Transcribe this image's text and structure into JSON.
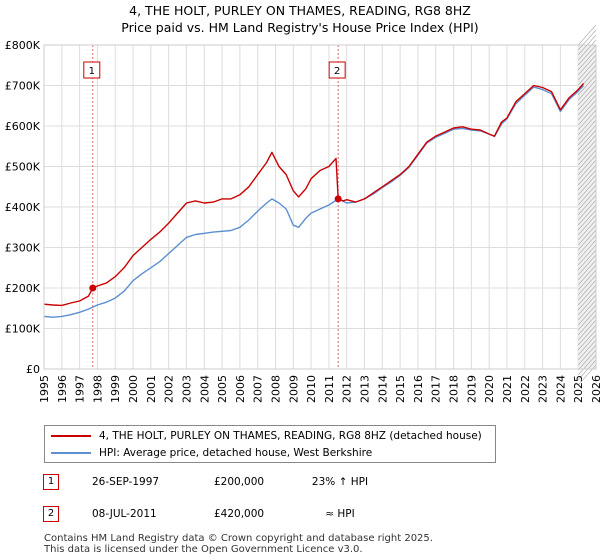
{
  "title_line1": "4, THE HOLT, PURLEY ON THAMES, READING, RG8 8HZ",
  "title_line2": "Price paid vs. HM Land Registry's House Price Index (HPI)",
  "colors": {
    "property": "#cc0000",
    "hpi": "#5b8fd0",
    "grid": "#dddddd",
    "forecast": "#aaaaaa"
  },
  "chart_data": {
    "type": "line",
    "x_range": [
      1995,
      2026
    ],
    "y_range": [
      0,
      800000
    ],
    "x_ticks": [
      "1995",
      "1996",
      "1997",
      "1998",
      "1999",
      "2000",
      "2001",
      "2002",
      "2003",
      "2004",
      "2005",
      "2006",
      "2007",
      "2008",
      "2009",
      "2010",
      "2011",
      "2012",
      "2013",
      "2014",
      "2015",
      "2016",
      "2017",
      "2018",
      "2019",
      "2020",
      "2021",
      "2022",
      "2023",
      "2024",
      "2025",
      "2026"
    ],
    "y_ticks": [
      {
        "value": 0,
        "label": "£0"
      },
      {
        "value": 100000,
        "label": "£100K"
      },
      {
        "value": 200000,
        "label": "£200K"
      },
      {
        "value": 300000,
        "label": "£300K"
      },
      {
        "value": 400000,
        "label": "£400K"
      },
      {
        "value": 500000,
        "label": "£500K"
      },
      {
        "value": 600000,
        "label": "£600K"
      },
      {
        "value": 700000,
        "label": "£700K"
      },
      {
        "value": 800000,
        "label": "£800K"
      }
    ],
    "forecast_start": 2025.0,
    "series": [
      {
        "name": "4, THE HOLT, PURLEY ON THAMES, READING, RG8 8HZ (detached house)",
        "color": "#cc0000",
        "points": [
          [
            1995.0,
            160000
          ],
          [
            1995.5,
            158000
          ],
          [
            1996.0,
            157000
          ],
          [
            1996.5,
            163000
          ],
          [
            1997.0,
            168000
          ],
          [
            1997.5,
            180000
          ],
          [
            1997.74,
            200000
          ],
          [
            1998.0,
            205000
          ],
          [
            1998.5,
            212000
          ],
          [
            1999.0,
            228000
          ],
          [
            1999.5,
            250000
          ],
          [
            2000.0,
            280000
          ],
          [
            2000.5,
            300000
          ],
          [
            2001.0,
            320000
          ],
          [
            2001.5,
            338000
          ],
          [
            2002.0,
            360000
          ],
          [
            2002.5,
            385000
          ],
          [
            2003.0,
            410000
          ],
          [
            2003.5,
            415000
          ],
          [
            2004.0,
            410000
          ],
          [
            2004.5,
            412000
          ],
          [
            2005.0,
            420000
          ],
          [
            2005.5,
            420000
          ],
          [
            2006.0,
            430000
          ],
          [
            2006.5,
            450000
          ],
          [
            2007.0,
            480000
          ],
          [
            2007.5,
            510000
          ],
          [
            2007.8,
            535000
          ],
          [
            2008.2,
            500000
          ],
          [
            2008.6,
            480000
          ],
          [
            2009.0,
            440000
          ],
          [
            2009.3,
            425000
          ],
          [
            2009.7,
            445000
          ],
          [
            2010.0,
            470000
          ],
          [
            2010.5,
            490000
          ],
          [
            2011.0,
            500000
          ],
          [
            2011.4,
            520000
          ],
          [
            2011.52,
            420000
          ],
          [
            2011.8,
            415000
          ],
          [
            2012.0,
            418000
          ],
          [
            2012.5,
            412000
          ],
          [
            2013.0,
            420000
          ],
          [
            2013.5,
            435000
          ],
          [
            2014.0,
            450000
          ],
          [
            2014.5,
            465000
          ],
          [
            2015.0,
            480000
          ],
          [
            2015.5,
            500000
          ],
          [
            2016.0,
            530000
          ],
          [
            2016.5,
            560000
          ],
          [
            2017.0,
            575000
          ],
          [
            2017.5,
            585000
          ],
          [
            2018.0,
            595000
          ],
          [
            2018.5,
            598000
          ],
          [
            2019.0,
            592000
          ],
          [
            2019.5,
            590000
          ],
          [
            2020.0,
            580000
          ],
          [
            2020.3,
            575000
          ],
          [
            2020.7,
            610000
          ],
          [
            2021.0,
            620000
          ],
          [
            2021.5,
            660000
          ],
          [
            2022.0,
            680000
          ],
          [
            2022.5,
            700000
          ],
          [
            2023.0,
            695000
          ],
          [
            2023.5,
            685000
          ],
          [
            2024.0,
            640000
          ],
          [
            2024.5,
            670000
          ],
          [
            2025.0,
            690000
          ],
          [
            2025.3,
            705000
          ]
        ]
      },
      {
        "name": "HPI: Average price, detached house, West Berkshire",
        "color": "#5b8fd0",
        "points": [
          [
            1995.0,
            130000
          ],
          [
            1995.5,
            128000
          ],
          [
            1996.0,
            130000
          ],
          [
            1996.5,
            134000
          ],
          [
            1997.0,
            140000
          ],
          [
            1997.5,
            148000
          ],
          [
            1998.0,
            158000
          ],
          [
            1998.5,
            165000
          ],
          [
            1999.0,
            175000
          ],
          [
            1999.5,
            192000
          ],
          [
            2000.0,
            218000
          ],
          [
            2000.5,
            235000
          ],
          [
            2001.0,
            250000
          ],
          [
            2001.5,
            265000
          ],
          [
            2002.0,
            285000
          ],
          [
            2002.5,
            305000
          ],
          [
            2003.0,
            325000
          ],
          [
            2003.5,
            332000
          ],
          [
            2004.0,
            335000
          ],
          [
            2004.5,
            338000
          ],
          [
            2005.0,
            340000
          ],
          [
            2005.5,
            342000
          ],
          [
            2006.0,
            350000
          ],
          [
            2006.5,
            368000
          ],
          [
            2007.0,
            390000
          ],
          [
            2007.5,
            410000
          ],
          [
            2007.8,
            420000
          ],
          [
            2008.2,
            410000
          ],
          [
            2008.6,
            395000
          ],
          [
            2009.0,
            355000
          ],
          [
            2009.3,
            350000
          ],
          [
            2009.7,
            372000
          ],
          [
            2010.0,
            385000
          ],
          [
            2010.5,
            395000
          ],
          [
            2011.0,
            405000
          ],
          [
            2011.52,
            420000
          ],
          [
            2012.0,
            410000
          ],
          [
            2012.5,
            412000
          ],
          [
            2013.0,
            420000
          ],
          [
            2013.5,
            432000
          ],
          [
            2014.0,
            448000
          ],
          [
            2014.5,
            462000
          ],
          [
            2015.0,
            478000
          ],
          [
            2015.5,
            498000
          ],
          [
            2016.0,
            528000
          ],
          [
            2016.5,
            558000
          ],
          [
            2017.0,
            572000
          ],
          [
            2017.5,
            582000
          ],
          [
            2018.0,
            592000
          ],
          [
            2018.5,
            594000
          ],
          [
            2019.0,
            590000
          ],
          [
            2019.5,
            588000
          ],
          [
            2020.0,
            580000
          ],
          [
            2020.3,
            574000
          ],
          [
            2020.7,
            605000
          ],
          [
            2021.0,
            618000
          ],
          [
            2021.5,
            655000
          ],
          [
            2022.0,
            676000
          ],
          [
            2022.5,
            696000
          ],
          [
            2023.0,
            690000
          ],
          [
            2023.5,
            680000
          ],
          [
            2024.0,
            636000
          ],
          [
            2024.5,
            666000
          ],
          [
            2025.0,
            686000
          ],
          [
            2025.3,
            700000
          ]
        ]
      }
    ],
    "sales": [
      {
        "id": "1",
        "date": "26-SEP-1997",
        "price": "£200,000",
        "hpi": "23% ↑ HPI",
        "x": 1997.74,
        "y": 200000
      },
      {
        "id": "2",
        "date": "08-JUL-2011",
        "price": "£420,000",
        "hpi": "≈ HPI",
        "x": 2011.52,
        "y": 420000
      }
    ]
  },
  "footer_line1": "Contains HM Land Registry data © Crown copyright and database right 2025.",
  "footer_line2": "This data is licensed under the Open Government Licence v3.0."
}
